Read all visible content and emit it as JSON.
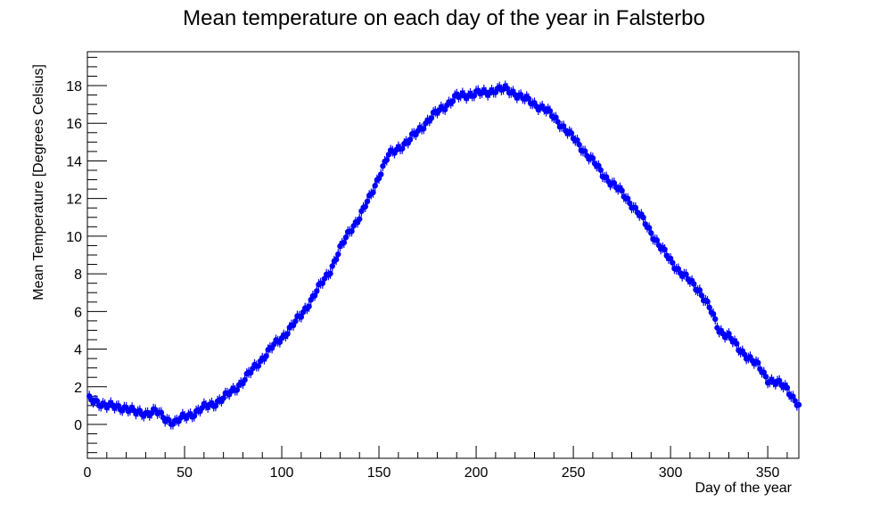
{
  "chart_data": {
    "type": "scatter",
    "title": "Mean temperature on each day of the year in Falsterbo",
    "xlabel": "Day of the year",
    "ylabel": "Mean Temperature [Degrees Celsius]",
    "xlim": [
      0,
      366
    ],
    "ylim": [
      -1.8,
      19.8
    ],
    "x_ticks": [
      "0",
      "50",
      "100",
      "150",
      "200",
      "250",
      "300",
      "350"
    ],
    "y_ticks": [
      "0",
      "2",
      "4",
      "6",
      "8",
      "10",
      "12",
      "14",
      "16",
      "18"
    ],
    "grid": false,
    "legend": "none",
    "marker_color": "#0000ff",
    "error_bars": true,
    "series": [
      {
        "values_from": "day_profile",
        "x_start": 1,
        "x_end": 366
      }
    ],
    "day_profile": [
      [
        1,
        1.3
      ],
      [
        5,
        1.2
      ],
      [
        10,
        1.0
      ],
      [
        15,
        0.9
      ],
      [
        20,
        0.9
      ],
      [
        25,
        0.6
      ],
      [
        30,
        0.6
      ],
      [
        35,
        0.7
      ],
      [
        40,
        0.3
      ],
      [
        45,
        0.1
      ],
      [
        50,
        0.4
      ],
      [
        55,
        0.6
      ],
      [
        60,
        0.9
      ],
      [
        65,
        1.1
      ],
      [
        70,
        1.4
      ],
      [
        75,
        1.8
      ],
      [
        80,
        2.3
      ],
      [
        85,
        2.9
      ],
      [
        90,
        3.5
      ],
      [
        95,
        4.1
      ],
      [
        100,
        4.6
      ],
      [
        105,
        5.2
      ],
      [
        110,
        5.8
      ],
      [
        115,
        6.6
      ],
      [
        120,
        7.4
      ],
      [
        125,
        8.2
      ],
      [
        130,
        9.3
      ],
      [
        135,
        10.3
      ],
      [
        140,
        11.0
      ],
      [
        145,
        12.0
      ],
      [
        150,
        13.2
      ],
      [
        155,
        14.3
      ],
      [
        160,
        14.7
      ],
      [
        165,
        15.0
      ],
      [
        170,
        15.6
      ],
      [
        175,
        16.1
      ],
      [
        180,
        16.6
      ],
      [
        185,
        17.0
      ],
      [
        190,
        17.4
      ],
      [
        195,
        17.5
      ],
      [
        200,
        17.6
      ],
      [
        205,
        17.6
      ],
      [
        210,
        17.8
      ],
      [
        215,
        17.8
      ],
      [
        220,
        17.6
      ],
      [
        225,
        17.3
      ],
      [
        230,
        17.0
      ],
      [
        235,
        16.8
      ],
      [
        240,
        16.3
      ],
      [
        245,
        15.8
      ],
      [
        250,
        15.2
      ],
      [
        255,
        14.6
      ],
      [
        260,
        14.0
      ],
      [
        265,
        13.3
      ],
      [
        270,
        12.8
      ],
      [
        275,
        12.3
      ],
      [
        280,
        11.7
      ],
      [
        285,
        11.0
      ],
      [
        290,
        10.2
      ],
      [
        295,
        9.4
      ],
      [
        300,
        8.7
      ],
      [
        305,
        8.1
      ],
      [
        310,
        7.6
      ],
      [
        315,
        7.1
      ],
      [
        320,
        6.2
      ],
      [
        325,
        5.0
      ],
      [
        330,
        4.7
      ],
      [
        335,
        4.0
      ],
      [
        340,
        3.6
      ],
      [
        345,
        3.1
      ],
      [
        350,
        2.4
      ],
      [
        355,
        2.2
      ],
      [
        360,
        1.9
      ],
      [
        366,
        1.0
      ]
    ]
  }
}
